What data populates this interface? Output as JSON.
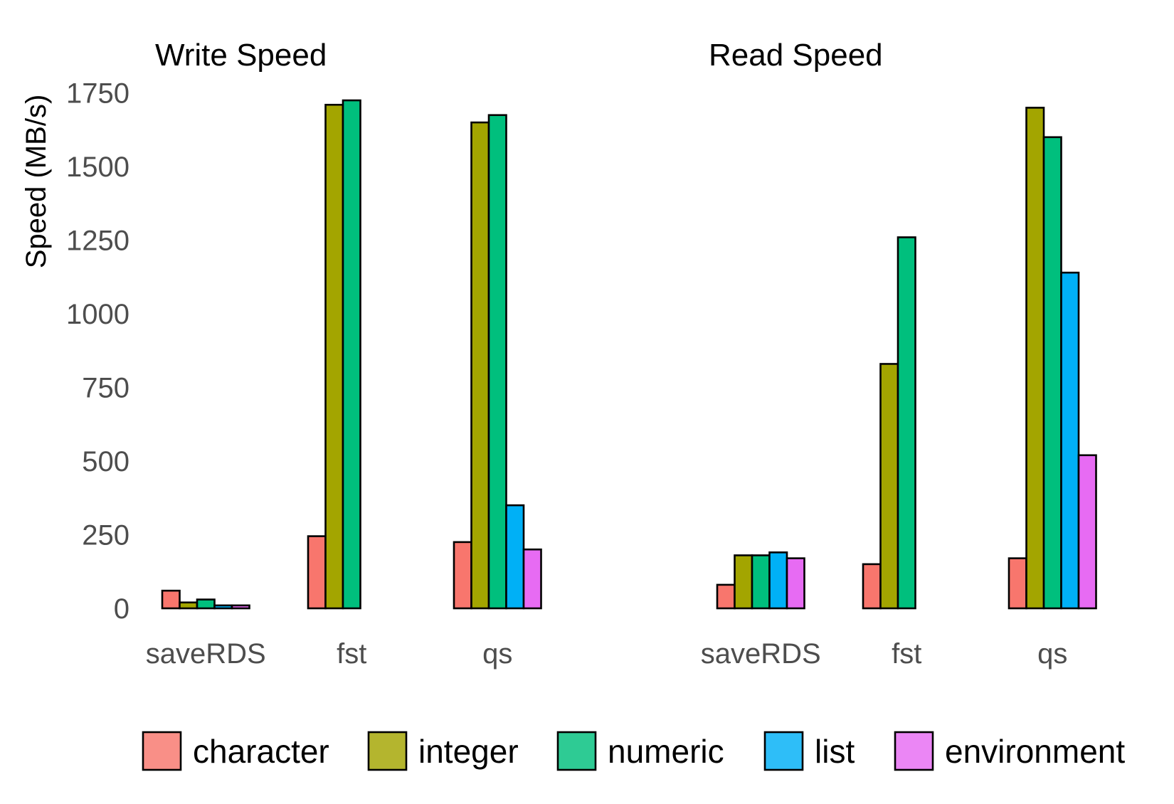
{
  "chart_data": {
    "type": "bar",
    "ylabel": "Speed (MB/s)",
    "ylim": [
      0,
      1800
    ],
    "yticks": [
      0,
      250,
      500,
      750,
      1000,
      1250,
      1500,
      1750
    ],
    "grid": false,
    "legend_position": "bottom",
    "series": [
      {
        "name": "character",
        "color": "#f8766d"
      },
      {
        "name": "integer",
        "color": "#a3a500"
      },
      {
        "name": "numeric",
        "color": "#00bf7d"
      },
      {
        "name": "list",
        "color": "#00b0f6"
      },
      {
        "name": "environment",
        "color": "#e76bf3"
      }
    ],
    "panels": [
      {
        "title": "Write Speed",
        "categories": [
          "saveRDS",
          "fst",
          "qs"
        ],
        "values": {
          "saveRDS": [
            60,
            20,
            30,
            10,
            10
          ],
          "fst": [
            245,
            1710,
            1725,
            null,
            null
          ],
          "qs": [
            225,
            1650,
            1675,
            350,
            200
          ]
        }
      },
      {
        "title": "Read Speed",
        "categories": [
          "saveRDS",
          "fst",
          "qs"
        ],
        "values": {
          "saveRDS": [
            80,
            180,
            180,
            190,
            170
          ],
          "fst": [
            150,
            830,
            1260,
            null,
            null
          ],
          "qs": [
            170,
            1700,
            1600,
            1140,
            520
          ]
        }
      }
    ]
  }
}
